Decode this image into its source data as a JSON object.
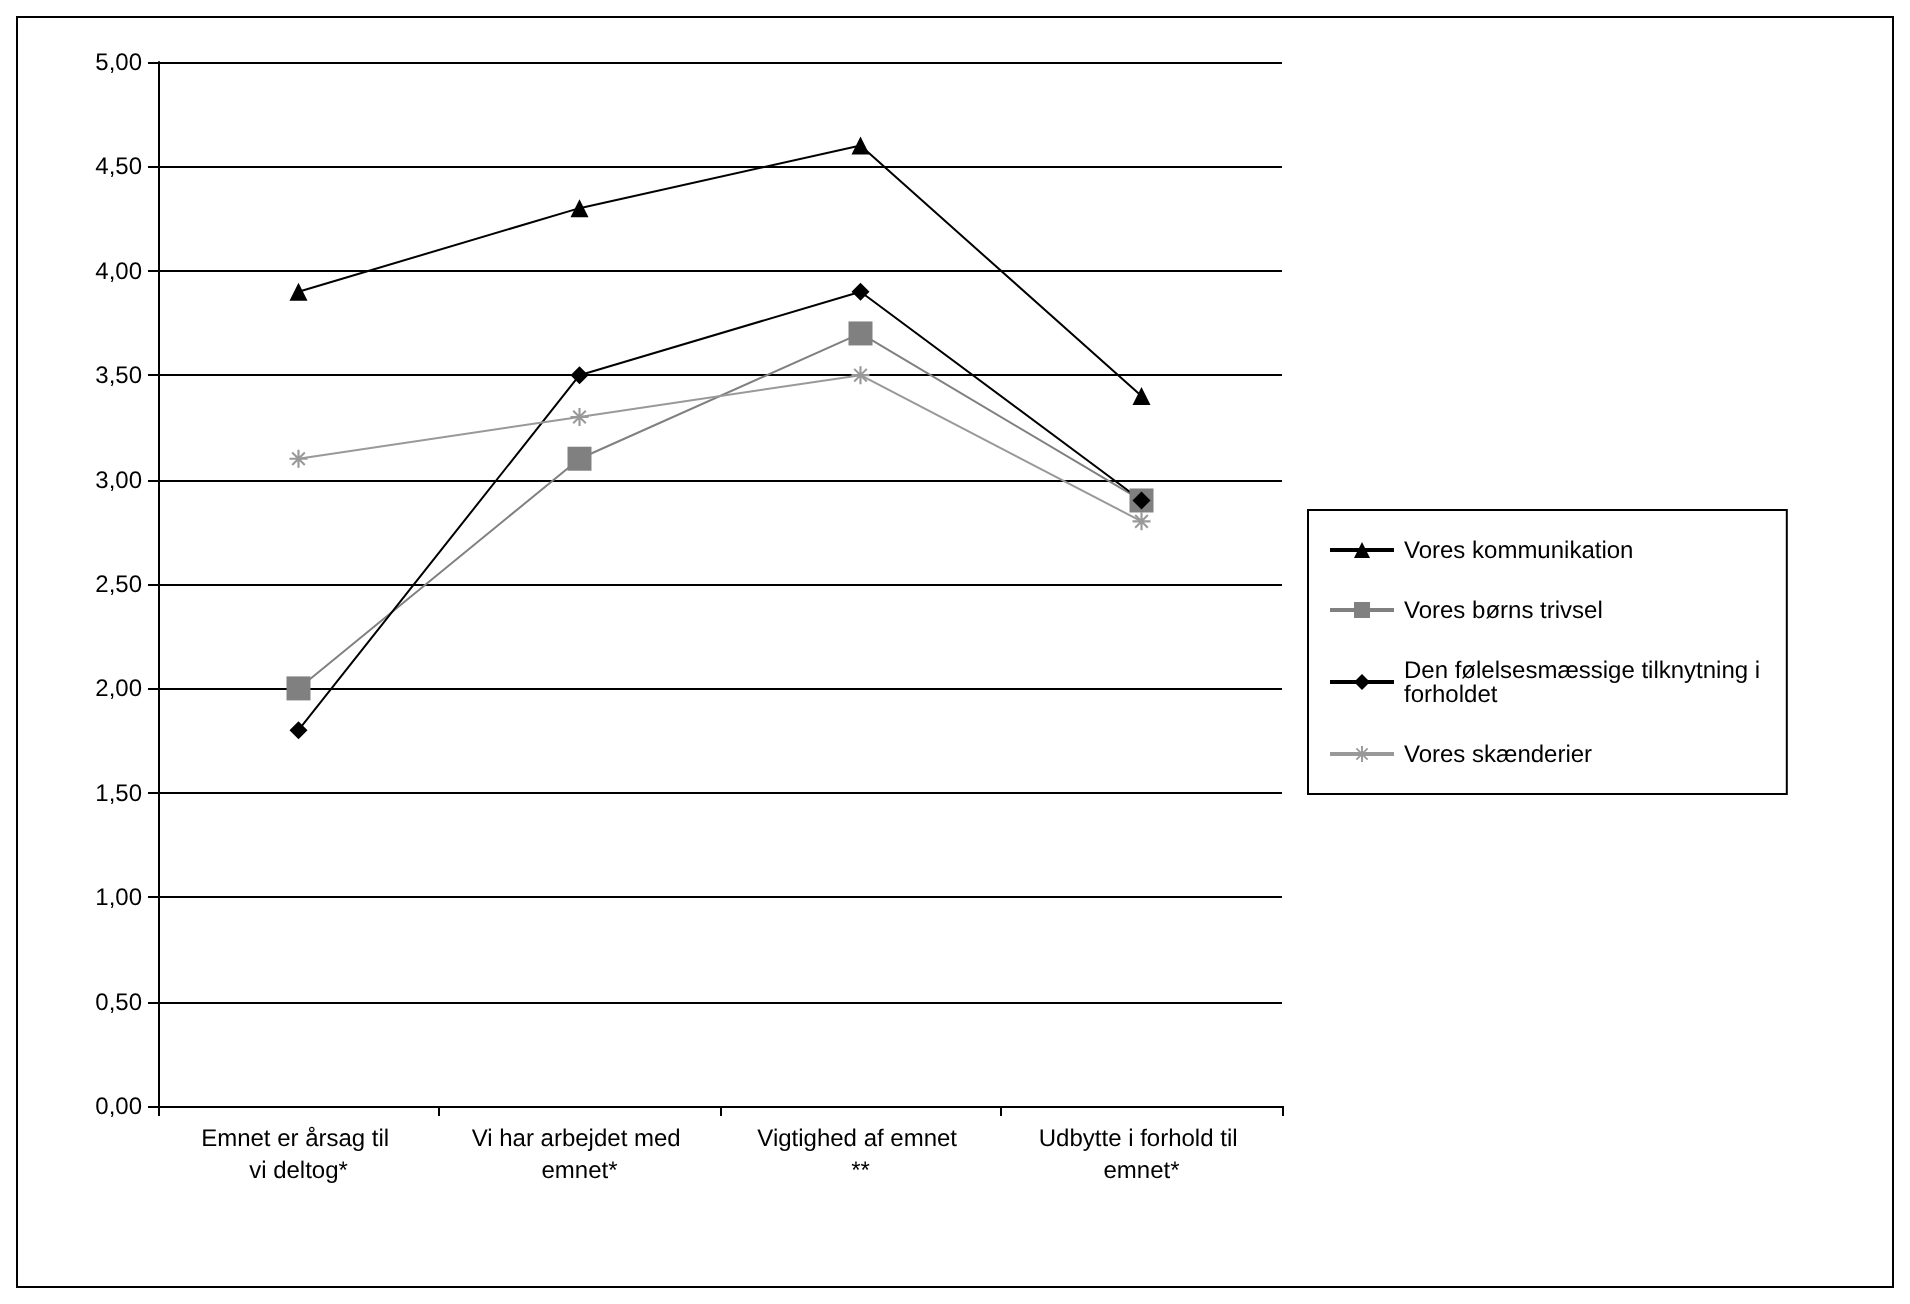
{
  "chart_data": {
    "type": "line",
    "categories": [
      "Emnet er årsag til vi deltog*",
      "Vi har arbejdet med emnet*",
      "Vigtighed af emnet **",
      "Udbytte i forhold til emnet*"
    ],
    "series": [
      {
        "name": "Vores kommunikation",
        "color": "#000000",
        "marker": "triangle",
        "values": [
          3.9,
          4.3,
          4.6,
          3.4
        ]
      },
      {
        "name": "Vores børns trivsel",
        "color": "#808080",
        "marker": "square",
        "values": [
          2.0,
          3.1,
          3.7,
          2.9
        ]
      },
      {
        "name": "Den følelsesmæssige tilknytning i forholdet",
        "color": "#000000",
        "marker": "diamond",
        "values": [
          1.8,
          3.5,
          3.9,
          2.9
        ]
      },
      {
        "name": "Vores skænderier",
        "color": "#999999",
        "marker": "star",
        "values": [
          3.1,
          3.3,
          3.5,
          2.8
        ]
      }
    ],
    "ylim": [
      0,
      5
    ],
    "yticks": [
      {
        "value": 0,
        "label": "0,00"
      },
      {
        "value": 0.5,
        "label": "0,50"
      },
      {
        "value": 1,
        "label": "1,00"
      },
      {
        "value": 1.5,
        "label": "1,50"
      },
      {
        "value": 2,
        "label": "2,00"
      },
      {
        "value": 2.5,
        "label": "2,50"
      },
      {
        "value": 3,
        "label": "3,00"
      },
      {
        "value": 3.5,
        "label": "3,50"
      },
      {
        "value": 4,
        "label": "4,00"
      },
      {
        "value": 4.5,
        "label": "4,50"
      },
      {
        "value": 5,
        "label": "5,00"
      }
    ],
    "grid": "y",
    "legend": "right",
    "line_style": "solid"
  }
}
